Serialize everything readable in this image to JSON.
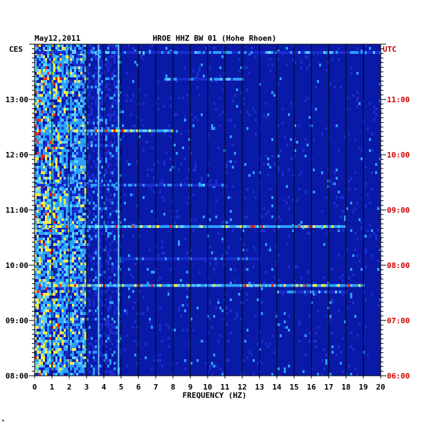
{
  "chart_data": {
    "type": "heatmap",
    "title": "HROE HHZ BW 01 (Hohe Rhoen)",
    "date_label": "May12,2011",
    "xlabel": "FREQUENCY (HZ)",
    "xlim": [
      0,
      20
    ],
    "x_ticks": [
      "0",
      "1",
      "2",
      "3",
      "4",
      "5",
      "6",
      "7",
      "8",
      "9",
      "10",
      "11",
      "12",
      "13",
      "14",
      "15",
      "16",
      "17",
      "18",
      "19",
      "20"
    ],
    "left_timezone": "CES",
    "right_timezone": "UTC",
    "left_time_ticks": [
      "13:00",
      "12:00",
      "11:00",
      "10:00",
      "09:00",
      "08:00"
    ],
    "right_time_ticks": [
      "11:00",
      "10:00",
      "09:00",
      "08:00",
      "07:00",
      "06:00"
    ],
    "time_range_local": [
      "08:00",
      "14:00"
    ],
    "colors": {
      "background": "#0a1aa8",
      "low": "#1a2cd0",
      "mid": "#2aa0ff",
      "high": "#ffee40",
      "peak": "#ff2010",
      "left_axis": "#000000",
      "right_axis": "#cc0000"
    },
    "steady_lines_hz": [
      3.7,
      4.85
    ],
    "events": [
      {
        "time": "13:51",
        "from_hz": 0,
        "to_hz": 20,
        "level": "medium"
      },
      {
        "time": "13:22",
        "from_hz": 7.5,
        "to_hz": 12,
        "level": "medium"
      },
      {
        "time": "12:26",
        "from_hz": 0,
        "to_hz": 8,
        "level": "high"
      },
      {
        "time": "12:10",
        "from_hz": 0,
        "to_hz": 4.5,
        "level": "medium"
      },
      {
        "time": "11:27",
        "from_hz": 0,
        "to_hz": 11,
        "level": "medium"
      },
      {
        "time": "10:42",
        "from_hz": 0,
        "to_hz": 18,
        "level": "high"
      },
      {
        "time": "10:07",
        "from_hz": 5,
        "to_hz": 13,
        "level": "low"
      },
      {
        "time": "09:38",
        "from_hz": 0,
        "to_hz": 19,
        "level": "high"
      },
      {
        "time": "09:31",
        "from_hz": 14,
        "to_hz": 18,
        "level": "medium"
      }
    ],
    "grid": true
  },
  "footer_mark": "*"
}
